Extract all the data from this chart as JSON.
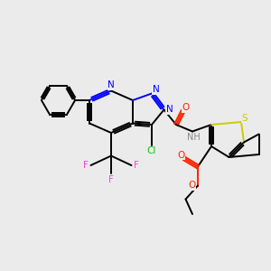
{
  "background_color": "#ebebeb",
  "atom_colors": {
    "N": "#0000ff",
    "O": "#ff2200",
    "S": "#cccc00",
    "Cl": "#00cc00",
    "F": "#ff44cc",
    "C": "#000000",
    "H": "#888888"
  },
  "bond_color": "#000000",
  "figsize": [
    3.0,
    3.0
  ],
  "dpi": 100
}
